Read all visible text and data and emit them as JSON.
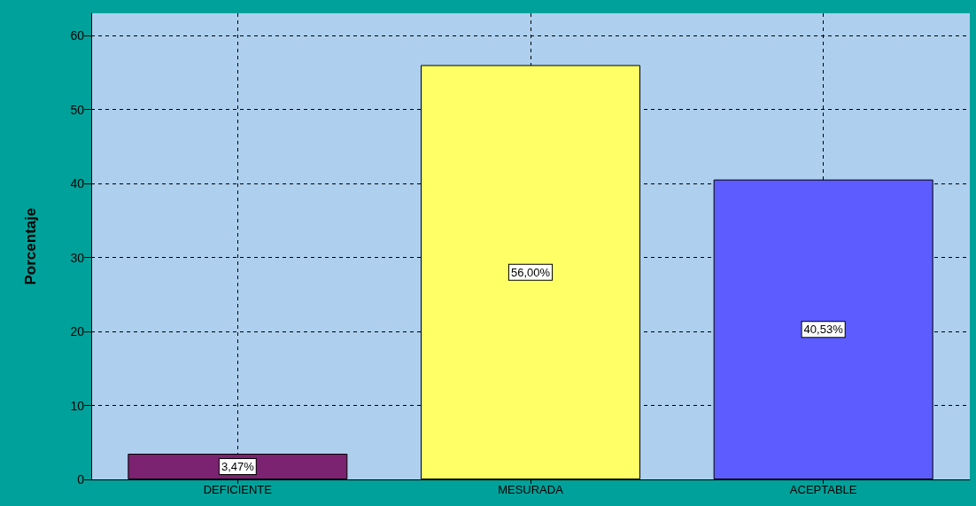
{
  "chart_data": {
    "type": "bar",
    "ylabel": "Porcentaje",
    "categories": [
      "DEFICIENTE",
      "MESURADA",
      "ACEPTABLE"
    ],
    "values": [
      3.47,
      56.0,
      40.53
    ],
    "colors": [
      "#7b2270",
      "#ffff66",
      "#5c5cff"
    ],
    "value_labels": [
      "3,47%",
      "56,00%",
      "40,53%"
    ],
    "ylim": [
      0,
      63
    ],
    "yticks": [
      0,
      10,
      20,
      30,
      40,
      50,
      60
    ],
    "grid": true
  }
}
